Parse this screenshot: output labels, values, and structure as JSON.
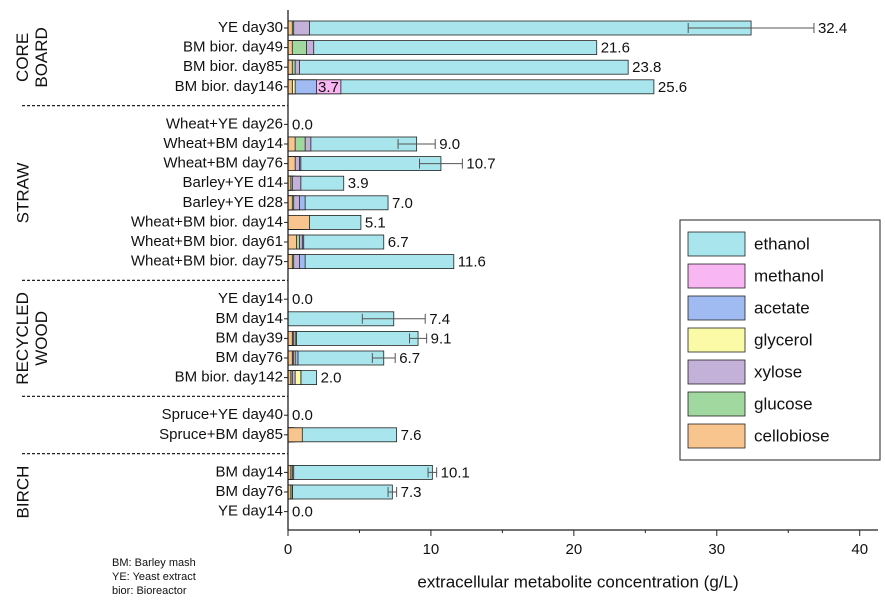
{
  "chart_data": {
    "type": "bar",
    "orientation": "horizontal",
    "overlay": true,
    "xlabel": "extracellular metabolite concentration (g/L)",
    "xlim": [
      0,
      41
    ],
    "xticks": [
      0,
      10,
      20,
      30,
      40
    ],
    "groups": [
      {
        "label": [
          "CORE",
          "BOARD"
        ],
        "categories": [
          "YE day30",
          "BM bior. day49",
          "BM bior. day85",
          "BM bior. day146"
        ]
      },
      {
        "label": [
          "STRAW"
        ],
        "categories": [
          "Wheat+YE day26",
          "Wheat+BM day14",
          "Wheat+BM day76",
          "Barley+YE d14",
          "Barley+YE d28",
          "Wheat+BM bior. day14",
          "Wheat+BM bior. day61",
          "Wheat+BM bior. day75"
        ]
      },
      {
        "label": [
          "RECYCLED",
          "WOOD"
        ],
        "categories": [
          "YE day14",
          "BM day14",
          "BM day39",
          "BM day76",
          "BM bior. day142"
        ]
      },
      {
        "label": [],
        "categories": [
          "Spruce+YE day40",
          "Spruce+BM day85"
        ]
      },
      {
        "label": [
          "BIRCH"
        ],
        "categories": [
          "BM day14",
          "BM day76",
          "YE day14"
        ]
      }
    ],
    "series": [
      {
        "name": "ethanol",
        "color": "#a9e5ec",
        "values": [
          32.4,
          21.6,
          23.8,
          25.6,
          0,
          9.0,
          10.7,
          3.9,
          7.0,
          5.1,
          6.7,
          11.6,
          0,
          7.4,
          9.1,
          6.7,
          2.0,
          0,
          7.6,
          10.1,
          7.3,
          0
        ],
        "value_labels": [
          "32.4",
          "21.6",
          "23.8",
          "25.6",
          "0.0",
          "9.0",
          "10.7",
          "3.9",
          "7.0",
          "5.1",
          "6.7",
          "11.6",
          "0.0",
          "7.4",
          "9.1",
          "6.7",
          "2.0",
          "0.0",
          "7.6",
          "10.1",
          "7.3",
          "0.0"
        ],
        "errors": [
          4.4,
          null,
          null,
          null,
          null,
          1.3,
          1.5,
          null,
          null,
          null,
          null,
          null,
          null,
          2.2,
          0.6,
          0.8,
          null,
          null,
          null,
          0.3,
          0.3,
          null
        ]
      },
      {
        "name": "methanol",
        "color": "#f8b6f3",
        "values": [
          0,
          0,
          0,
          3.7,
          0,
          0,
          0,
          0,
          0,
          0,
          0,
          0,
          0,
          0,
          0,
          0,
          0,
          0,
          0,
          0,
          0,
          0
        ],
        "value_labels": [
          null,
          null,
          null,
          "3.7",
          null,
          null,
          null,
          null,
          null,
          null,
          null,
          null,
          null,
          null,
          null,
          null,
          null,
          null,
          null,
          null,
          null,
          null
        ]
      },
      {
        "name": "acetate",
        "color": "#9fbbf1",
        "values": [
          0.3,
          0.5,
          0.4,
          2.0,
          0,
          1.0,
          0.9,
          0.5,
          1.2,
          0.8,
          1.1,
          1.2,
          0,
          0,
          0.6,
          0.7,
          0.9,
          0,
          0.4,
          0.3,
          0.3,
          0
        ]
      },
      {
        "name": "glycerol",
        "color": "#fbfaa7",
        "values": [
          0.2,
          0.3,
          0.3,
          0.5,
          0,
          0.5,
          0.6,
          0.4,
          0.6,
          0.7,
          0.8,
          0.6,
          0,
          0,
          0.5,
          0.5,
          0.9,
          0,
          0.5,
          0.3,
          0.3,
          0
        ]
      },
      {
        "name": "xylose",
        "color": "#c4b1da",
        "values": [
          1.5,
          1.8,
          0.8,
          0.3,
          0,
          1.6,
          0.8,
          0.9,
          0.8,
          1.0,
          1.0,
          0.8,
          0,
          0,
          0.4,
          0.4,
          0.5,
          0,
          0.3,
          0.4,
          0.3,
          0
        ]
      },
      {
        "name": "glucose",
        "color": "#a0d8a0",
        "values": [
          0.4,
          1.3,
          0.5,
          0.2,
          0,
          1.2,
          0.5,
          0.3,
          0.4,
          0.6,
          0.8,
          0.4,
          0,
          0,
          0.3,
          0.3,
          0.3,
          0,
          0.3,
          0.3,
          0.3,
          0
        ]
      },
      {
        "name": "cellobiose",
        "color": "#f9c58f",
        "values": [
          0.3,
          0.3,
          0.3,
          0.3,
          0,
          0.5,
          0.5,
          0.2,
          0.3,
          1.5,
          0.6,
          0.3,
          0,
          0,
          0.3,
          0.3,
          0.2,
          0,
          1.0,
          0.2,
          0.2,
          0
        ]
      }
    ],
    "legend_position": "right",
    "notes": [
      "BM: Barley mash",
      "YE: Yeast extract",
      "bior: Bioreactor"
    ]
  }
}
